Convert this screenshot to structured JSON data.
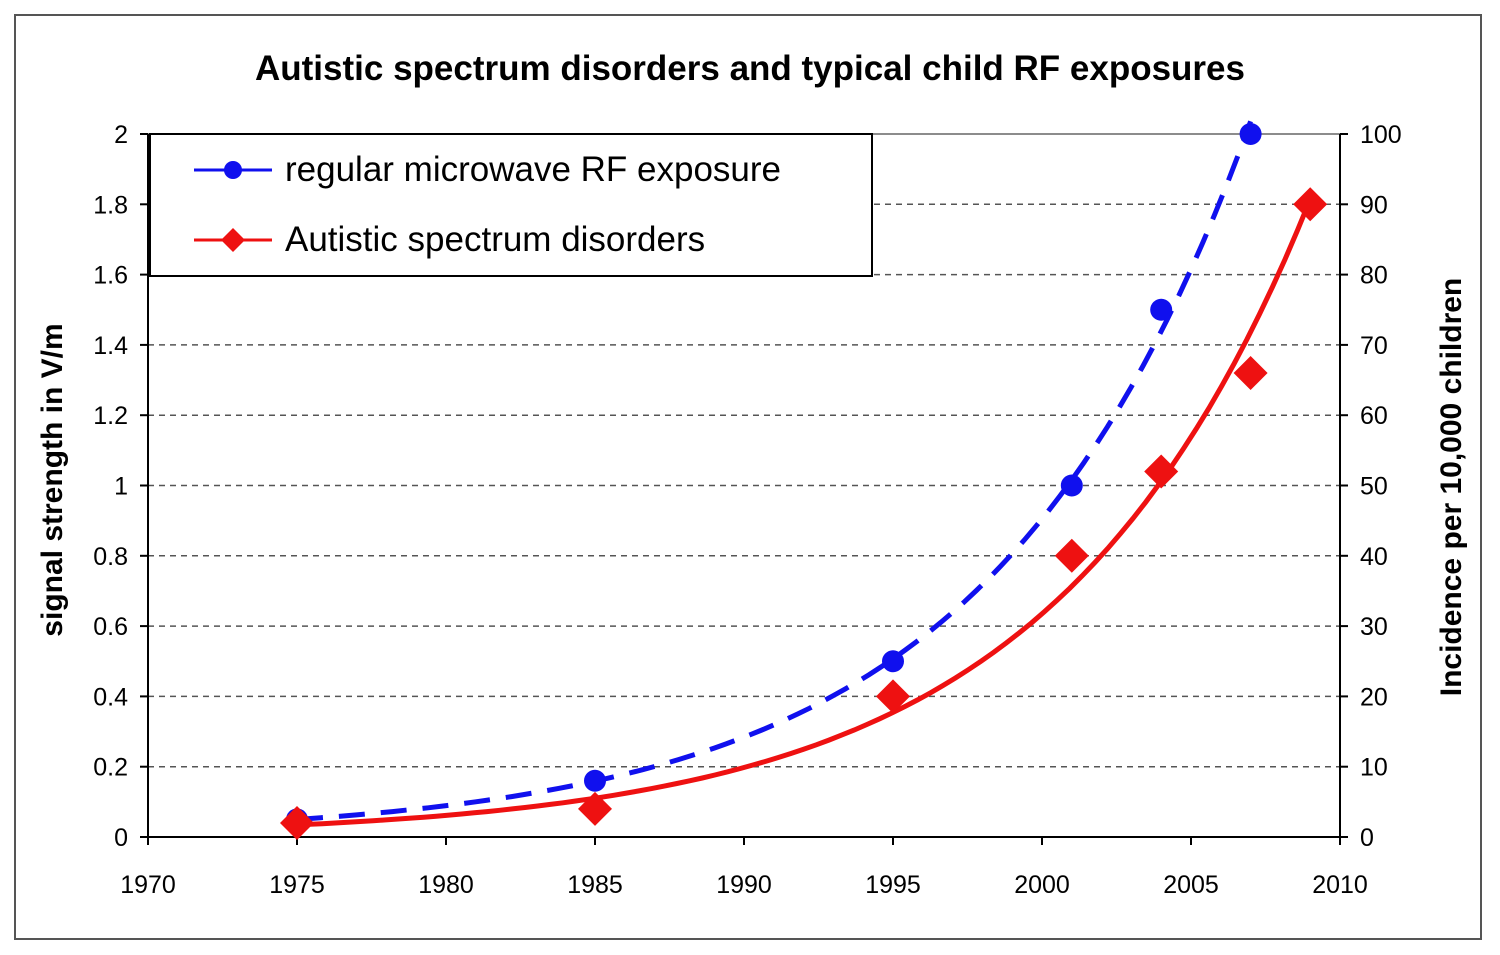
{
  "chart_data": {
    "type": "line",
    "title": "Autistic spectrum disorders and typical child RF exposures",
    "xlabel": "",
    "ylabel": "signal strength in V/m",
    "y2label": "Incidence per 10,000 children",
    "xlim": [
      1970,
      2010
    ],
    "ylim": [
      0,
      2
    ],
    "y2lim": [
      0,
      100
    ],
    "x_ticks": [
      1970,
      1975,
      1980,
      1985,
      1990,
      1995,
      2000,
      2005,
      2010
    ],
    "y_ticks": [
      "0",
      "0.2",
      "0.4",
      "0.6",
      "0.8",
      "1",
      "1.2",
      "1.4",
      "1.6",
      "1.8",
      "2"
    ],
    "y2_ticks": [
      "0",
      "10",
      "20",
      "30",
      "40",
      "50",
      "60",
      "70",
      "80",
      "90",
      "100"
    ],
    "grid": "horizontal dashed",
    "legend_position": "top-left",
    "series": [
      {
        "name": "regular microwave RF exposure",
        "axis": "left",
        "marker": "circle",
        "color": "#1010EE",
        "trendline": "dashed exponential",
        "x": [
          1975,
          1985,
          1995,
          2001,
          2004,
          2007
        ],
        "values": [
          0.05,
          0.16,
          0.5,
          1.0,
          1.5,
          2.0
        ]
      },
      {
        "name": "Autistic spectrum disorders",
        "axis": "right",
        "marker": "diamond",
        "color": "#EE1111",
        "trendline": "solid exponential",
        "x": [
          1975,
          1985,
          1995,
          2001,
          2004,
          2007,
          2009
        ],
        "values": [
          2,
          4,
          20,
          40,
          52,
          66,
          90
        ]
      }
    ]
  }
}
